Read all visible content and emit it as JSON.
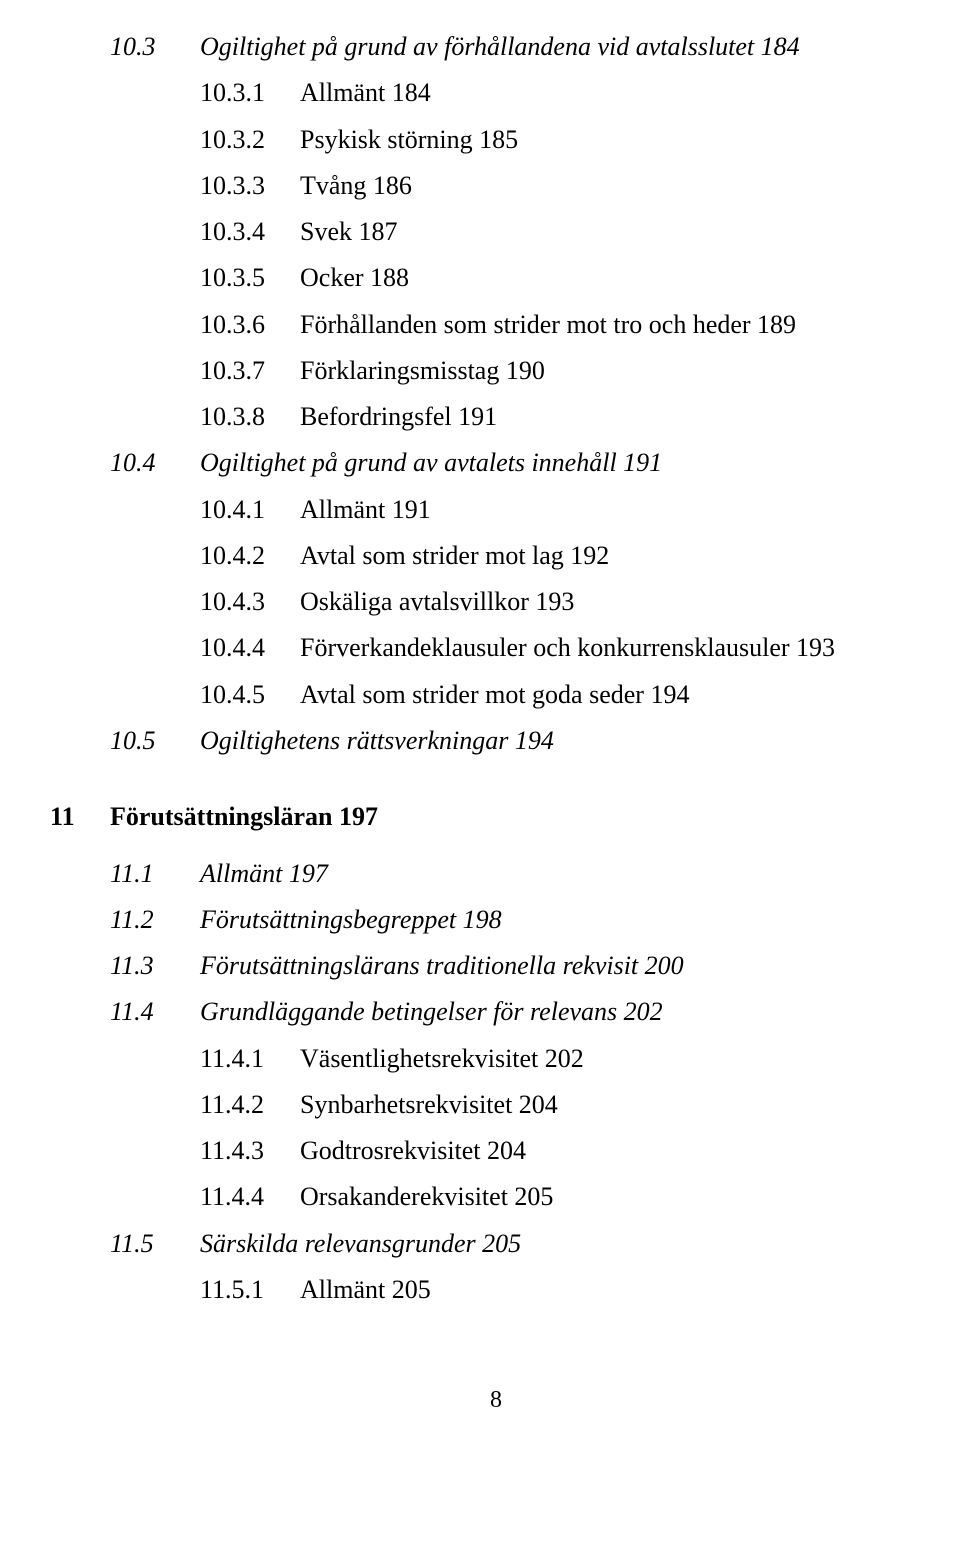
{
  "toc": {
    "sec_10_3": {
      "num": "10.3",
      "title": "Ogiltighet på grund av förhållandena vid avtalsslutet 184"
    },
    "sub_10_3_1": {
      "num": "10.3.1",
      "title": "Allmänt 184"
    },
    "sub_10_3_2": {
      "num": "10.3.2",
      "title": "Psykisk störning 185"
    },
    "sub_10_3_3": {
      "num": "10.3.3",
      "title": "Tvång 186"
    },
    "sub_10_3_4": {
      "num": "10.3.4",
      "title": "Svek 187"
    },
    "sub_10_3_5": {
      "num": "10.3.5",
      "title": "Ocker 188"
    },
    "sub_10_3_6": {
      "num": "10.3.6",
      "title": "Förhållanden som strider mot tro och heder 189"
    },
    "sub_10_3_7": {
      "num": "10.3.7",
      "title": "Förklaringsmisstag 190"
    },
    "sub_10_3_8": {
      "num": "10.3.8",
      "title": "Befordringsfel 191"
    },
    "sec_10_4": {
      "num": "10.4",
      "title": "Ogiltighet på grund av avtalets innehåll 191"
    },
    "sub_10_4_1": {
      "num": "10.4.1",
      "title": "Allmänt 191"
    },
    "sub_10_4_2": {
      "num": "10.4.2",
      "title": "Avtal som strider mot lag 192"
    },
    "sub_10_4_3": {
      "num": "10.4.3",
      "title": "Oskäliga avtalsvillkor 193"
    },
    "sub_10_4_4": {
      "num": "10.4.4",
      "title": "Förverkandeklausuler och konkurrensklausuler 193"
    },
    "sub_10_4_5": {
      "num": "10.4.5",
      "title": "Avtal som strider mot goda seder 194"
    },
    "sec_10_5": {
      "num": "10.5",
      "title": "Ogiltighetens rättsverkningar 194"
    },
    "chap_11": {
      "num": "11",
      "title": "Förutsättningsläran 197"
    },
    "sec_11_1": {
      "num": "11.1",
      "title": "Allmänt 197"
    },
    "sec_11_2": {
      "num": "11.2",
      "title": "Förutsättningsbegreppet 198"
    },
    "sec_11_3": {
      "num": "11.3",
      "title": "Förutsättningslärans traditionella rekvisit 200"
    },
    "sec_11_4": {
      "num": "11.4",
      "title": "Grundläggande betingelser för relevans 202"
    },
    "sub_11_4_1": {
      "num": "11.4.1",
      "title": "Väsentlighetsrekvisitet 202"
    },
    "sub_11_4_2": {
      "num": "11.4.2",
      "title": "Synbarhetsrekvisitet 204"
    },
    "sub_11_4_3": {
      "num": "11.4.3",
      "title": "Godtrosrekvisitet 204"
    },
    "sub_11_4_4": {
      "num": "11.4.4",
      "title": "Orsakanderekvisitet 205"
    },
    "sec_11_5": {
      "num": "11.5",
      "title": "Särskilda relevansgrunder 205"
    },
    "sub_11_5_1": {
      "num": "11.5.1",
      "title": "Allmänt 205"
    }
  },
  "page_number": "8"
}
